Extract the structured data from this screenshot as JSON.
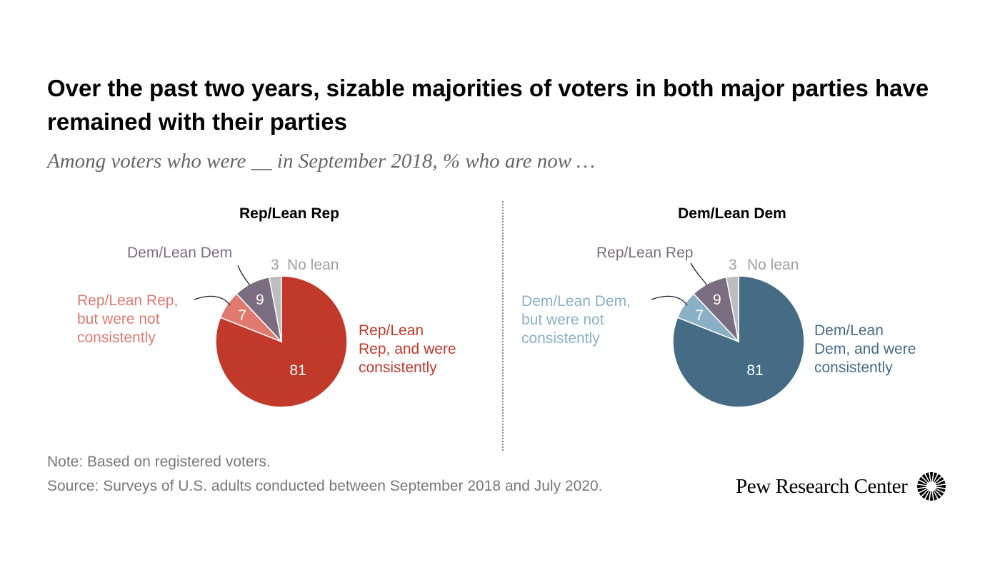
{
  "title": "Over the past two years, sizable majorities of voters in both major parties have remained with their parties",
  "subtitle": "Among voters who were __ in September 2018, % who are now …",
  "note": "Note: Based on registered voters.",
  "source": "Source: Surveys of U.S. adults conducted between September 2018 and July 2020.",
  "logo": {
    "text": "Pew Research Center"
  },
  "colors": {
    "rep_consistent": "#c0392b",
    "rep_not_consistent": "#e07a70",
    "dem_consistent": "#456b85",
    "dem_not_consistent": "#8ab0c6",
    "switched": "#7a6d80",
    "no_lean": "#bdbdbd"
  },
  "chart_data": [
    {
      "type": "pie",
      "title": "Rep/Lean Rep",
      "slices": [
        {
          "label_lines": [
            "Rep/Lean",
            "Rep, and were",
            "consistently"
          ],
          "value": 81,
          "color": "#c0392b"
        },
        {
          "label_lines": [
            "Rep/Lean Rep,",
            "but were not",
            "consistently"
          ],
          "value": 7,
          "color": "#e07a70"
        },
        {
          "label_lines": [
            "Dem/Lean Dem"
          ],
          "value": 9,
          "color": "#7a6d80"
        },
        {
          "label_lines": [
            "No lean"
          ],
          "value": 3,
          "color": "#bdbdbd"
        }
      ]
    },
    {
      "type": "pie",
      "title": "Dem/Lean Dem",
      "slices": [
        {
          "label_lines": [
            "Dem/Lean",
            "Dem, and were",
            "consistently"
          ],
          "value": 81,
          "color": "#456b85"
        },
        {
          "label_lines": [
            "Dem/Lean Dem,",
            "but were not",
            "consistently"
          ],
          "value": 7,
          "color": "#8ab0c6"
        },
        {
          "label_lines": [
            "Rep/Lean Rep"
          ],
          "value": 9,
          "color": "#7a6d80"
        },
        {
          "label_lines": [
            "No lean"
          ],
          "value": 3,
          "color": "#bdbdbd"
        }
      ]
    }
  ]
}
